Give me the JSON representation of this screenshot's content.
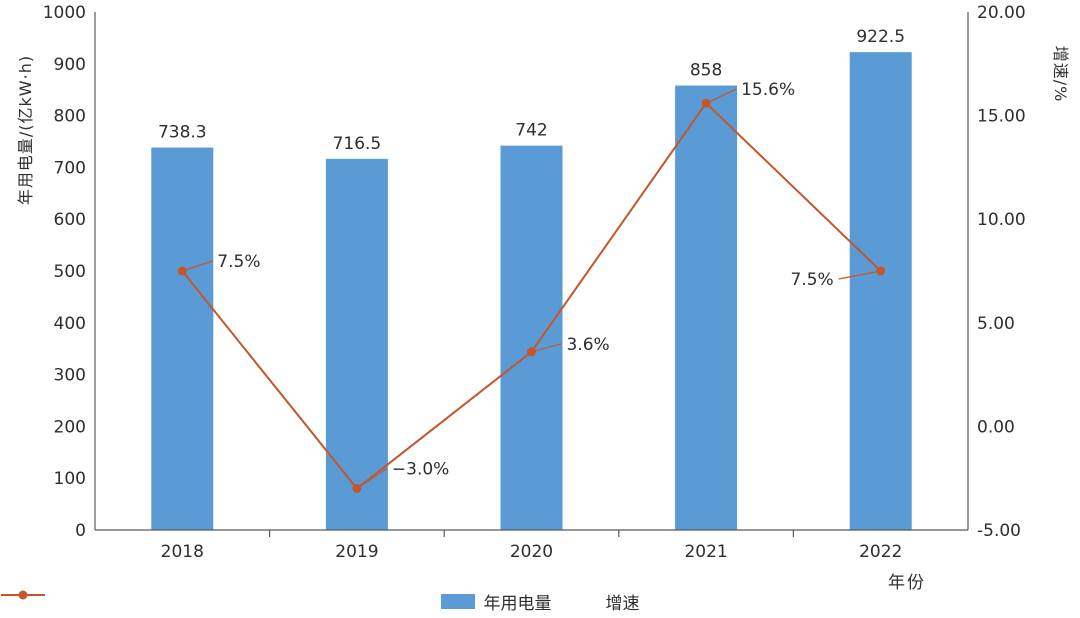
{
  "chart_data": {
    "type": "combo",
    "title": "",
    "categories": [
      "2018",
      "2019",
      "2020",
      "2021",
      "2022"
    ],
    "series": [
      {
        "name": "年用电量",
        "type": "bar",
        "axis": "left",
        "color": "#5b9bd5",
        "values": [
          738.3,
          716.5,
          742,
          858,
          922.5
        ],
        "labels": [
          "738.3",
          "716.5",
          "742",
          "858",
          "922.5"
        ]
      },
      {
        "name": "增速",
        "type": "line",
        "axis": "right",
        "color": "#c4562c",
        "values": [
          7.5,
          -3.0,
          3.6,
          15.6,
          7.5
        ],
        "labels": [
          "7.5%",
          "−3.0%",
          "3.6%",
          "15.6%",
          "7.5%"
        ],
        "label_sides": [
          "right",
          "right",
          "right",
          "right",
          "left"
        ],
        "label_offsets": [
          [
            30,
            -10
          ],
          [
            30,
            -20
          ],
          [
            30,
            -8
          ],
          [
            30,
            -14
          ],
          [
            -42,
            8
          ]
        ]
      }
    ],
    "left_axis": {
      "title": "年用电量/(亿kW·h)",
      "min": 0,
      "max": 1000,
      "step": 100,
      "ticks": [
        "0",
        "100",
        "200",
        "300",
        "400",
        "500",
        "600",
        "700",
        "800",
        "900",
        "1000"
      ]
    },
    "right_axis": {
      "title": "增速/%",
      "min": -5,
      "max": 20,
      "step": 5,
      "ticks": [
        "-5.00",
        "0.00",
        "5.00",
        "10.00",
        "15.00",
        "20.00"
      ]
    },
    "x_axis": {
      "title": "年份"
    },
    "grid": false,
    "legend_position": "bottom",
    "legend": [
      {
        "label": "年用电量",
        "marker": "bar-swatch",
        "color": "#5b9bd5"
      },
      {
        "label": "增速",
        "marker": "line-dot-swatch",
        "color": "#c4562c"
      }
    ],
    "text_color": "#2e2e2e",
    "axis_line_color": "#595959"
  }
}
